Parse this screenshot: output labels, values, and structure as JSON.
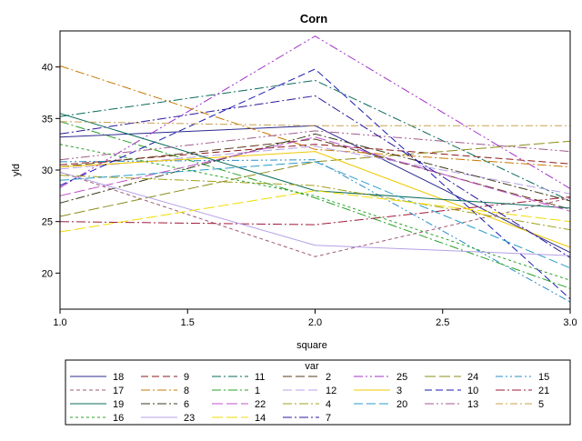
{
  "chart_data": {
    "type": "line",
    "title": "Corn",
    "xlabel": "square",
    "ylabel": "yld",
    "xlim": [
      1.0,
      3.0
    ],
    "ylim": [
      16.5,
      43.5
    ],
    "x": [
      1,
      2,
      3
    ],
    "x_ticks": [
      1.0,
      1.5,
      2.0,
      2.5,
      3.0
    ],
    "x_tick_labels": [
      "1.0",
      "1.5",
      "2.0",
      "2.5",
      "3.0"
    ],
    "y_ticks": [
      20,
      25,
      30,
      35,
      40
    ],
    "y_tick_labels": [
      "20",
      "25",
      "30",
      "35",
      "40"
    ],
    "grid": false,
    "legend_title": "var",
    "legend_position": "bottom",
    "series": [
      {
        "name": "18",
        "values": [
          33.2,
          34.3,
          22.0
        ],
        "color": "#2b2b8c",
        "dash": ""
      },
      {
        "name": "9",
        "values": [
          30.5,
          32.5,
          30.6
        ],
        "color": "#8c1a1a",
        "dash": "8,4"
      },
      {
        "name": "11",
        "values": [
          35.2,
          38.7,
          27.0
        ],
        "color": "#0a6b5a",
        "dash": "10,3,2,3"
      },
      {
        "name": "2",
        "values": [
          30.3,
          33.0,
          26.2
        ],
        "color": "#5a3a1a",
        "dash": "10,4"
      },
      {
        "name": "25",
        "values": [
          28.3,
          43.0,
          28.2
        ],
        "color": "#a030c8",
        "dash": "10,3,2,3,2,3"
      },
      {
        "name": "24",
        "values": [
          25.5,
          30.8,
          32.8
        ],
        "color": "#8c8c1a",
        "dash": "12,4"
      },
      {
        "name": "15",
        "values": [
          30.8,
          31.0,
          17.2
        ],
        "color": "#2a8cc8",
        "dash": "8,3,2,3,2,3"
      },
      {
        "name": "17",
        "values": [
          29.8,
          21.6,
          27.3
        ],
        "color": "#a05a78",
        "dash": "4,3"
      },
      {
        "name": "8",
        "values": [
          40.1,
          32.0,
          30.3
        ],
        "color": "#c87800",
        "dash": "10,3,2,3"
      },
      {
        "name": "1",
        "values": [
          34.7,
          27.3,
          18.5
        ],
        "color": "#28a028",
        "dash": "10,3,2,3"
      },
      {
        "name": "12",
        "values": [
          30.1,
          32.3,
          27.7
        ],
        "color": "#b8a0e8",
        "dash": "10,4"
      },
      {
        "name": "3",
        "values": [
          30.3,
          31.8,
          22.5
        ],
        "color": "#f0c800",
        "dash": ""
      },
      {
        "name": "10",
        "values": [
          28.5,
          39.8,
          17.5
        ],
        "color": "#1a1ab4",
        "dash": "8,4"
      },
      {
        "name": "21",
        "values": [
          25.0,
          24.7,
          27.4
        ],
        "color": "#a01a3a",
        "dash": "10,3,2,3"
      },
      {
        "name": "19",
        "values": [
          35.5,
          28.0,
          26.3
        ],
        "color": "#0a6b5a",
        "dash": ""
      },
      {
        "name": "6",
        "values": [
          26.8,
          33.5,
          27.0
        ],
        "color": "#3a3a1a",
        "dash": "10,3,2,3"
      },
      {
        "name": "22",
        "values": [
          27.5,
          33.2,
          26.0
        ],
        "color": "#c050c8",
        "dash": "12,4"
      },
      {
        "name": "4",
        "values": [
          29.5,
          28.5,
          24.2
        ],
        "color": "#a0a01a",
        "dash": "10,3,2,3"
      },
      {
        "name": "20",
        "values": [
          29.0,
          30.8,
          20.5
        ],
        "color": "#2a9cc8",
        "dash": "10,4"
      },
      {
        "name": "13",
        "values": [
          31.0,
          33.8,
          31.8
        ],
        "color": "#a05a8c",
        "dash": "10,3,2,3,2,3"
      },
      {
        "name": "5",
        "values": [
          34.7,
          34.3,
          34.3
        ],
        "color": "#c8a050",
        "dash": "8,3,2,3"
      },
      {
        "name": "16",
        "values": [
          32.5,
          27.5,
          19.3
        ],
        "color": "#28a028",
        "dash": "3,3"
      },
      {
        "name": "23",
        "values": [
          29.8,
          22.7,
          21.7
        ],
        "color": "#b4a0e6",
        "dash": ""
      },
      {
        "name": "14",
        "values": [
          24.0,
          28.0,
          25.0
        ],
        "color": "#f0dc00",
        "dash": "12,4"
      },
      {
        "name": "7",
        "values": [
          33.5,
          37.2,
          21.5
        ],
        "color": "#2a1a9c",
        "dash": "10,3,2,3"
      }
    ]
  }
}
